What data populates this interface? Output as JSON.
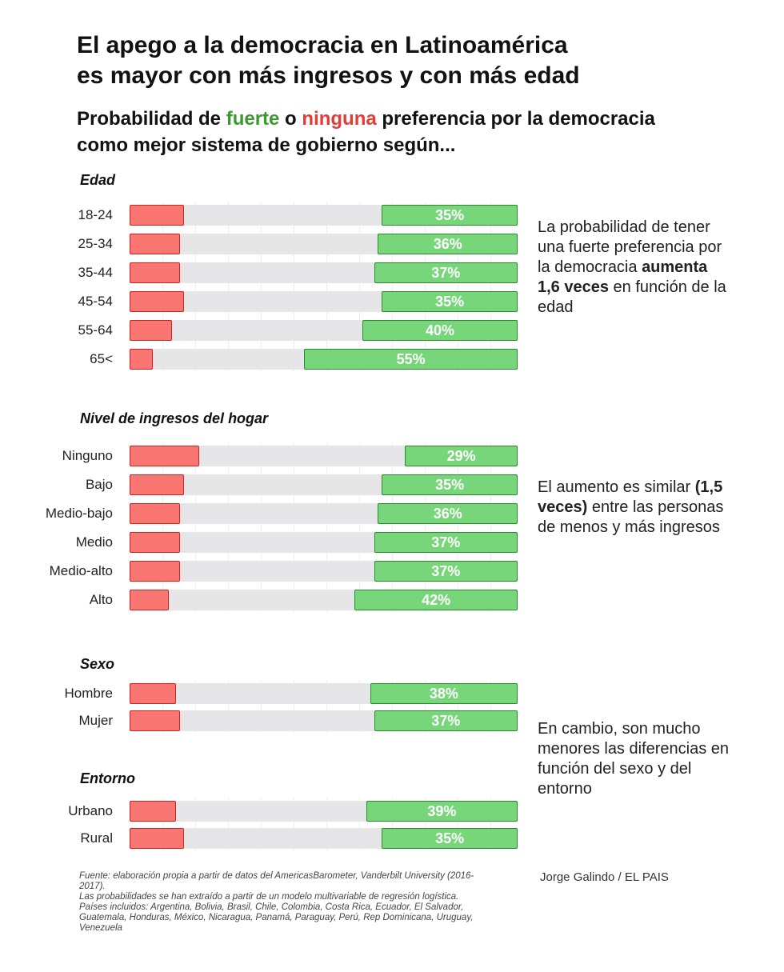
{
  "title_lines": [
    "El apego a la democracia en Latinoamérica",
    "es mayor con más ingresos y con más edad"
  ],
  "subtitle": {
    "pre": "Probabilidad de ",
    "strong": "fuerte",
    "mid": " o ",
    "none": "ninguna",
    "post": " preferencia por la democracia",
    "line2": "como mejor sistema de gobierno según..."
  },
  "colors": {
    "strong": "#78d67a",
    "none": "#f97672",
    "track": "#e6e6e8"
  },
  "chart_data": {
    "type": "bar",
    "xlim": [
      0,
      100
    ],
    "groups": [
      {
        "title": "Edad",
        "categories": [
          "18-24",
          "25-34",
          "35-44",
          "45-54",
          "55-64",
          "65<"
        ],
        "none": [
          14,
          13,
          13,
          14,
          11,
          6
        ],
        "strong": [
          35,
          36,
          37,
          35,
          40,
          55
        ],
        "strong_labels": [
          "35%",
          "36%",
          "37%",
          "35%",
          "40%",
          "55%"
        ]
      },
      {
        "title": "Nivel de ingresos del hogar",
        "categories": [
          "Ninguno",
          "Bajo",
          "Medio-bajo",
          "Medio",
          "Medio-alto",
          "Alto"
        ],
        "none": [
          18,
          14,
          13,
          13,
          13,
          10
        ],
        "strong": [
          29,
          35,
          36,
          37,
          37,
          42
        ],
        "strong_labels": [
          "29%",
          "35%",
          "36%",
          "37%",
          "37%",
          "42%"
        ]
      },
      {
        "title": "Sexo",
        "categories": [
          "Hombre",
          "Mujer"
        ],
        "none": [
          12,
          13
        ],
        "strong": [
          38,
          37
        ],
        "strong_labels": [
          "38%",
          "37%"
        ]
      },
      {
        "title": "Entorno",
        "categories": [
          "Urbano",
          "Rural"
        ],
        "none": [
          12,
          14
        ],
        "strong": [
          39,
          35
        ],
        "strong_labels": [
          "39%",
          "35%"
        ]
      }
    ]
  },
  "notes": [
    {
      "pre": "La probabilidad de tener una fuerte preferencia por la democracia ",
      "bold": "aumenta 1,6 veces",
      "post": " en función de la edad"
    },
    {
      "pre": "El aumento es similar ",
      "bold": "(1,5 veces)",
      "post": " entre las personas de menos y más ingresos"
    },
    {
      "pre": "En cambio, son mucho menores las diferencias en función del sexo y del entorno",
      "bold": "",
      "post": ""
    }
  ],
  "footer": [
    "Fuente: elaboración propia a partir de datos del AmericasBarometer, Vanderbilt University (2016-2017).",
    "Las probabilidades se han extraído a partir de un modelo multivariable de regresión logística.",
    "Países incluidos: Argentina, Bolivia, Brasil, Chile, Colombia, Costa Rica, Ecuador, El Salvador, Guatemala, Honduras, México, Nicaragua, Panamá, Paraguay, Perú, Rep Dominicana, Uruguay, Venezuela"
  ],
  "credit": "Jorge Galindo / EL PAIS"
}
